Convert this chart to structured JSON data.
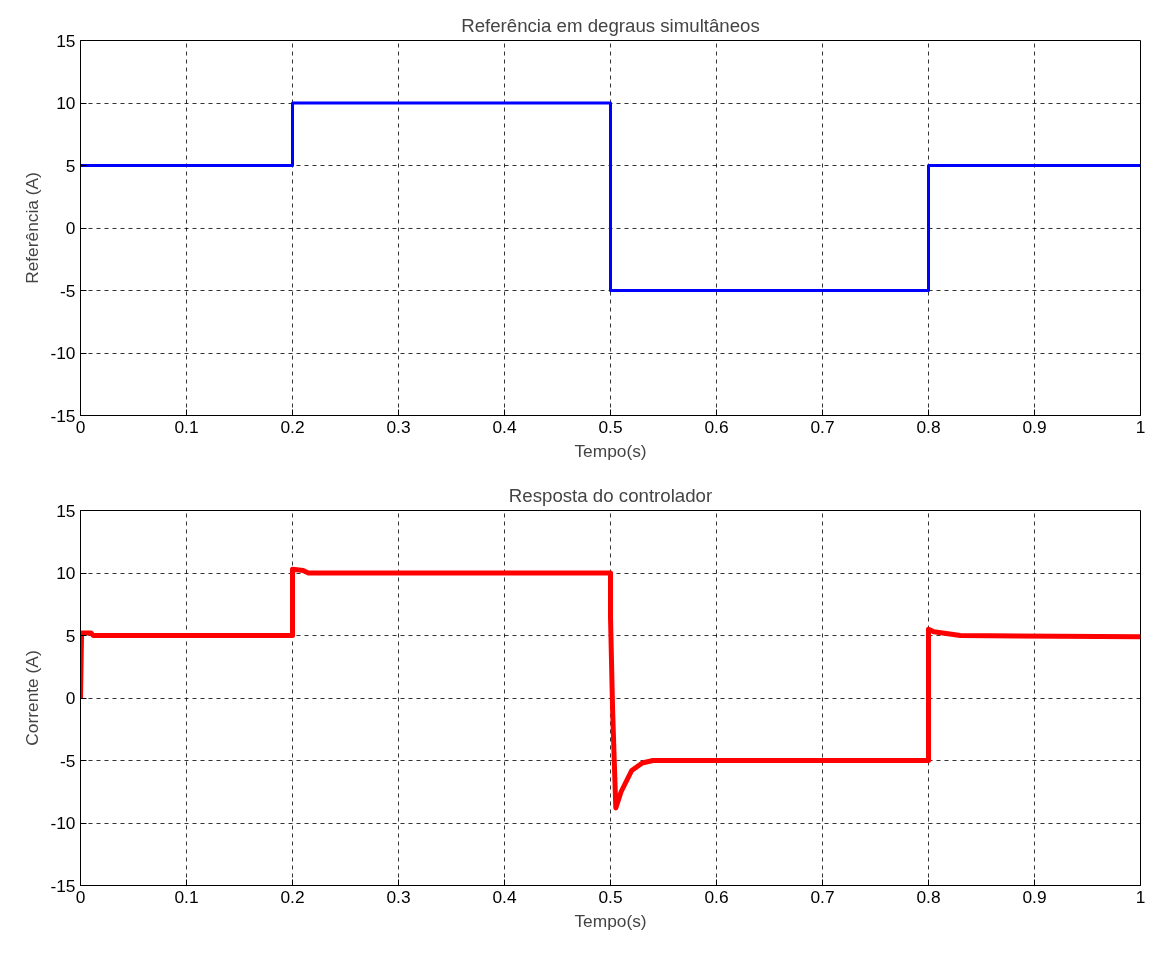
{
  "chart_data": [
    {
      "type": "line",
      "title": "Referência em degraus simultâneos",
      "xlabel": "Tempo(s)",
      "ylabel": "Referência (A)",
      "xlim": [
        0,
        1
      ],
      "xticks": [
        0,
        0.1,
        0.2,
        0.3,
        0.4,
        0.5,
        0.6,
        0.7,
        0.8,
        0.9,
        1
      ],
      "ylim": [
        -15,
        15
      ],
      "yticks": [
        -15,
        -10,
        -5,
        0,
        5,
        10,
        15
      ],
      "grid": true,
      "line_style": "solid",
      "series": [
        {
          "color": "#0000ff",
          "x": [
            0,
            0.2,
            0.2,
            0.5,
            0.5,
            0.8,
            0.8,
            1
          ],
          "values": [
            5,
            5,
            10,
            10,
            -5,
            -5,
            5,
            5
          ]
        }
      ]
    },
    {
      "type": "line",
      "title": "Resposta do controlador",
      "xlabel": "Tempo(s)",
      "ylabel": "Corrente (A)",
      "xlim": [
        0,
        1
      ],
      "xticks": [
        0,
        0.1,
        0.2,
        0.3,
        0.4,
        0.5,
        0.6,
        0.7,
        0.8,
        0.9,
        1
      ],
      "ylim": [
        -15,
        15
      ],
      "yticks": [
        -15,
        -10,
        -5,
        0,
        5,
        10,
        15
      ],
      "grid": true,
      "line_style": "solid",
      "series": [
        {
          "color": "#ff0000",
          "x": [
            0,
            0.001,
            0.01,
            0.012,
            0.2,
            0.2,
            0.21,
            0.215,
            0.5,
            0.5,
            0.502,
            0.505,
            0.51,
            0.52,
            0.53,
            0.54,
            0.8,
            0.8,
            0.805,
            0.83,
            1
          ],
          "values": [
            0,
            5.2,
            5.2,
            5,
            5,
            10.3,
            10.2,
            10,
            10,
            6.5,
            -1,
            -8.8,
            -7.5,
            -5.8,
            -5.2,
            -5,
            -5,
            5.5,
            5.3,
            5,
            4.9
          ]
        }
      ]
    }
  ]
}
